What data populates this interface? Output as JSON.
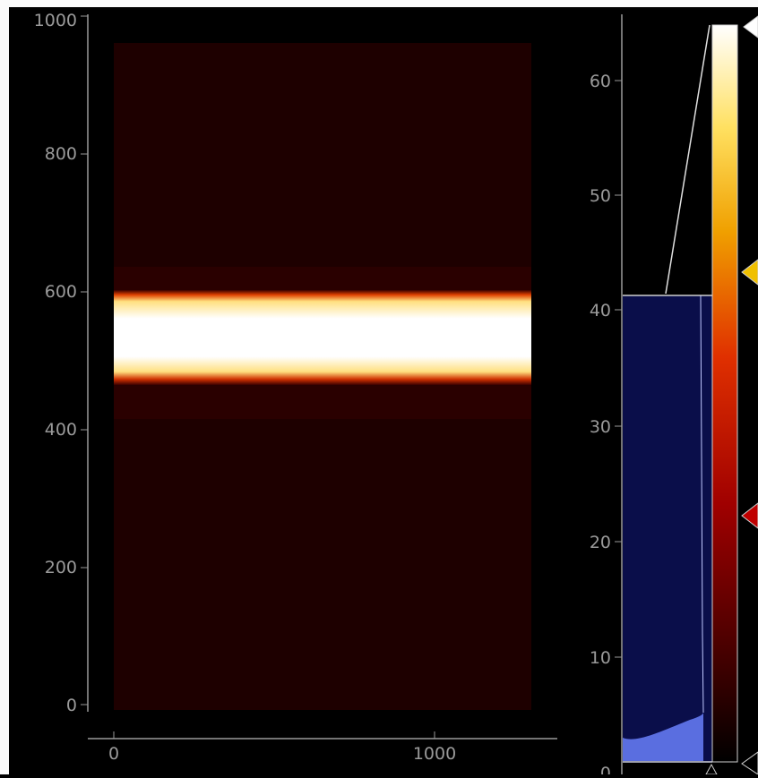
{
  "image_view": {
    "x_ticks": [
      "0",
      "1000"
    ],
    "y_ticks": [
      "1000",
      "800",
      "600",
      "400",
      "200",
      "0"
    ]
  },
  "histogram": {
    "y_ticks": [
      "60",
      "50",
      "40",
      "30",
      "20",
      "10",
      "0"
    ],
    "level_max": 41.5,
    "range": [
      0,
      66
    ]
  },
  "gradient": {
    "stops": [
      "#000000",
      "#3a0000",
      "#a00000",
      "#e03000",
      "#f0a000",
      "#ffe060",
      "#ffffff"
    ],
    "markers": [
      {
        "name": "white-marker",
        "color": "#ffffff",
        "value": 64
      },
      {
        "name": "yellow-marker",
        "color": "#f0c000",
        "value": 43
      },
      {
        "name": "red-marker",
        "color": "#c00000",
        "value": 22
      },
      {
        "name": "black-marker",
        "color": "#000000",
        "value": 1.5
      }
    ]
  },
  "colors": {
    "axis": "#9a9a9a",
    "hist_fill": "#0a0e4a",
    "hist_curve": "#5a6ee0",
    "image_bg": "#1e0000"
  }
}
